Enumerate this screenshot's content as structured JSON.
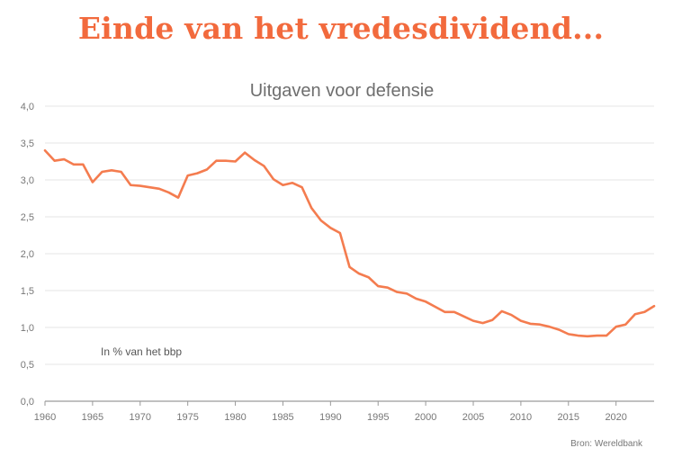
{
  "headline": "Einde van het vredesdividend...",
  "chart_data": {
    "type": "line",
    "title": "Uitgaven voor defensie",
    "annotation": "In % van het bbp",
    "source": "Bron: Wereldbank",
    "line_color": "#f47c4f",
    "grid": true,
    "ylim": [
      0,
      4
    ],
    "y_ticks": [
      "0,0",
      "0,5",
      "1,0",
      "1,5",
      "2,0",
      "2,5",
      "3,0",
      "3,5",
      "4,0"
    ],
    "x_ticks": [
      "1960",
      "1965",
      "1970",
      "1975",
      "1980",
      "1985",
      "1990",
      "1995",
      "2000",
      "2005",
      "2010",
      "2015",
      "2020"
    ],
    "xlim": [
      1960,
      2024
    ],
    "series": [
      {
        "x": [
          1960,
          1961,
          1962,
          1963,
          1964,
          1965,
          1966,
          1967,
          1968,
          1969,
          1970,
          1971,
          1972,
          1973,
          1974,
          1975,
          1976,
          1977,
          1978,
          1979,
          1980,
          1981,
          1982,
          1983,
          1984,
          1985,
          1986,
          1987,
          1988,
          1989,
          1990,
          1991,
          1992,
          1993,
          1994,
          1995,
          1996,
          1997,
          1998,
          1999,
          2000,
          2001,
          2002,
          2003,
          2004,
          2005,
          2006,
          2007,
          2008,
          2009,
          2010,
          2011,
          2012,
          2013,
          2014,
          2015,
          2016,
          2017,
          2018,
          2019,
          2020,
          2021,
          2022,
          2023,
          2024
        ],
        "values": [
          3.4,
          3.26,
          3.28,
          3.21,
          3.21,
          2.97,
          3.11,
          3.13,
          3.11,
          2.93,
          2.92,
          2.9,
          2.88,
          2.83,
          2.76,
          3.06,
          3.09,
          3.14,
          3.26,
          3.26,
          3.25,
          3.37,
          3.27,
          3.19,
          3.01,
          2.93,
          2.96,
          2.9,
          2.62,
          2.45,
          2.35,
          2.28,
          1.82,
          1.73,
          1.68,
          1.56,
          1.54,
          1.48,
          1.46,
          1.39,
          1.35,
          1.28,
          1.21,
          1.21,
          1.15,
          1.09,
          1.06,
          1.1,
          1.22,
          1.17,
          1.09,
          1.05,
          1.04,
          1.01,
          0.97,
          0.91,
          0.89,
          0.88,
          0.89,
          0.89,
          1.01,
          1.04,
          1.18,
          1.21,
          1.29
        ]
      }
    ]
  }
}
